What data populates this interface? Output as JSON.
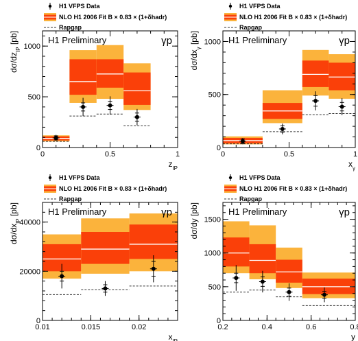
{
  "colors": {
    "band_outer": "#fbb33c",
    "band_inner": "#fa4009",
    "nlo_line": "#ffffff",
    "rapgap": "#333333",
    "data": "#000000"
  },
  "charts": [
    {
      "legend": {
        "data": "H1 VFPS Data",
        "nlo": "NLO H1 2006 Fit B × 0.83 × (1+δhadr)",
        "rapgap": "Rapgap"
      },
      "prelim": "H1 Preliminary",
      "gp": "γp",
      "xlabel": "zIP",
      "ylabel": "dσ/dzIP [pb]",
      "xticks": [
        "0",
        "0.5",
        "1"
      ],
      "yticks": [
        "0",
        "500",
        "1000"
      ]
    },
    {
      "legend": {
        "data": "H1 VFPS Data",
        "nlo": "NLO H1 2006 Fit B × 0.83 × (1+δhadr)",
        "rapgap": "Rapgap"
      },
      "prelim": "H1 Preliminary",
      "gp": "γp",
      "xlabel": "xγ",
      "ylabel": "dσ/dxγ [pb]",
      "xticks": [
        "0",
        "0.5",
        "1"
      ],
      "yticks": [
        "0",
        "500",
        "1000"
      ]
    },
    {
      "legend": {
        "data": "H1 VFPS Data",
        "nlo": "NLO H1 2006 Fit B × 0.83 × (1+δhadr)",
        "rapgap": "Rapgap"
      },
      "prelim": "H1 Preliminary",
      "gp": "γp",
      "xlabel": "xIP",
      "ylabel": "dσ/dxIP [pb]",
      "xticks": [
        "0.01",
        "0.015",
        "0.02"
      ],
      "yticks": [
        "0",
        "20000",
        "40000"
      ]
    },
    {
      "legend": {
        "data": "H1 VFPS Data",
        "nlo": "NLO H1 2006 Fit B × 0.83 × (1+δhadr)",
        "rapgap": "Rapgap"
      },
      "prelim": "H1 Preliminary",
      "gp": "γp",
      "xlabel": "y",
      "ylabel": "dσ/dy [pb]",
      "xticks": [
        "0.2",
        "0.4",
        "0.6",
        "0.8"
      ],
      "yticks": [
        "0",
        "500",
        "1000",
        "1500"
      ]
    }
  ],
  "chart_data": [
    {
      "type": "bar",
      "xlim": [
        0,
        1
      ],
      "ylim": [
        0,
        1150
      ],
      "xticks": [
        0,
        0.5,
        1
      ],
      "yticks": [
        0,
        500,
        1000
      ],
      "bins": [
        [
          0,
          0.2
        ],
        [
          0.2,
          0.4
        ],
        [
          0.4,
          0.6
        ],
        [
          0.6,
          0.8
        ]
      ],
      "series": [
        {
          "name": "H1 VFPS Data",
          "type": "scatter",
          "x": [
            0.1,
            0.3,
            0.5,
            0.7
          ],
          "y": [
            95,
            400,
            415,
            300
          ],
          "err_stat": [
            20,
            40,
            40,
            40
          ],
          "err_tot": [
            30,
            90,
            90,
            80
          ]
        },
        {
          "name": "NLO H1 2006 Fit B × 0.83 × (1+δhadr)",
          "type": "band",
          "center": [
            90,
            650,
            725,
            560
          ],
          "inner": [
            [
              70,
              110
            ],
            [
              520,
              870
            ],
            [
              590,
              870
            ],
            [
              420,
              740
            ]
          ],
          "outer": [
            [
              60,
              120
            ],
            [
              440,
              960
            ],
            [
              480,
              1010
            ],
            [
              370,
              830
            ]
          ]
        },
        {
          "name": "Rapgap",
          "type": "step",
          "y": [
            60,
            310,
            330,
            215
          ]
        }
      ]
    },
    {
      "type": "bar",
      "xlim": [
        0,
        1
      ],
      "ylim": [
        0,
        1100
      ],
      "xticks": [
        0,
        0.5,
        1
      ],
      "yticks": [
        0,
        500,
        1000
      ],
      "bins": [
        [
          0,
          0.3
        ],
        [
          0.3,
          0.6
        ],
        [
          0.6,
          0.8
        ],
        [
          0.8,
          1.0
        ]
      ],
      "series": [
        {
          "name": "H1 VFPS Data",
          "type": "scatter",
          "x": [
            0.15,
            0.45,
            0.7,
            0.9
          ],
          "y": [
            60,
            175,
            440,
            385
          ],
          "err_stat": [
            20,
            30,
            50,
            40
          ],
          "err_tot": [
            30,
            50,
            90,
            80
          ]
        },
        {
          "name": "NLO H1 2006 Fit B × 0.83 × (1+δhadr)",
          "type": "band",
          "center": [
            65,
            345,
            690,
            665
          ],
          "inner": [
            [
              40,
              90
            ],
            [
              270,
              420
            ],
            [
              570,
              820
            ],
            [
              540,
              800
            ]
          ],
          "outer": [
            [
              30,
              105
            ],
            [
              230,
              540
            ],
            [
              490,
              920
            ],
            [
              460,
              880
            ]
          ]
        },
        {
          "name": "Rapgap",
          "type": "step",
          "y": [
            35,
            150,
            310,
            320
          ]
        }
      ]
    },
    {
      "type": "bar",
      "xlim": [
        0.01,
        0.024
      ],
      "ylim": [
        0,
        48000
      ],
      "xticks": [
        0.01,
        0.015,
        0.02
      ],
      "yticks": [
        0,
        20000,
        40000
      ],
      "bins": [
        [
          0.01,
          0.014
        ],
        [
          0.014,
          0.019
        ],
        [
          0.019,
          0.024
        ]
      ],
      "series": [
        {
          "name": "H1 VFPS Data",
          "type": "scatter",
          "x": [
            0.012,
            0.0165,
            0.0215
          ],
          "y": [
            18000,
            13000,
            21000
          ],
          "err_stat": [
            2000,
            1500,
            3000
          ],
          "err_tot": [
            5000,
            3000,
            5500
          ]
        },
        {
          "name": "NLO H1 2006 Fit B × 0.83 × (1+δhadr)",
          "type": "band",
          "center": [
            25000,
            29000,
            31000
          ],
          "inner": [
            [
              20000,
              31000
            ],
            [
              23000,
              36000
            ],
            [
              25000,
              39000
            ]
          ],
          "outer": [
            [
              17000,
              35000
            ],
            [
              19000,
              41500
            ],
            [
              20000,
              43500
            ]
          ]
        },
        {
          "name": "Rapgap",
          "type": "step",
          "y": [
            10500,
            12500,
            14000
          ]
        }
      ]
    },
    {
      "type": "bar",
      "xlim": [
        0.2,
        0.8
      ],
      "ylim": [
        0,
        1750
      ],
      "xticks": [
        0.2,
        0.4,
        0.6,
        0.8
      ],
      "yticks": [
        0,
        500,
        1000,
        1500
      ],
      "bins": [
        [
          0.2,
          0.32
        ],
        [
          0.32,
          0.44
        ],
        [
          0.44,
          0.56
        ],
        [
          0.56,
          0.8
        ]
      ],
      "series": [
        {
          "name": "H1 VFPS Data",
          "type": "scatter",
          "x": [
            0.26,
            0.38,
            0.5,
            0.66
          ],
          "y": [
            630,
            575,
            420,
            380
          ],
          "err_stat": [
            70,
            70,
            60,
            50
          ],
          "err_tot": [
            190,
            160,
            130,
            110
          ]
        },
        {
          "name": "NLO H1 2006 Fit B × 0.83 × (1+δhadr)",
          "type": "band",
          "center": [
            1000,
            890,
            720,
            500
          ],
          "inner": [
            [
              800,
              1230
            ],
            [
              700,
              1130
            ],
            [
              560,
              900
            ],
            [
              390,
              620
            ]
          ],
          "outer": [
            [
              700,
              1470
            ],
            [
              610,
              1410
            ],
            [
              480,
              1080
            ],
            [
              330,
              710
            ]
          ]
        },
        {
          "name": "Rapgap",
          "type": "step",
          "y": [
            420,
            450,
            350,
            220
          ]
        }
      ]
    }
  ]
}
